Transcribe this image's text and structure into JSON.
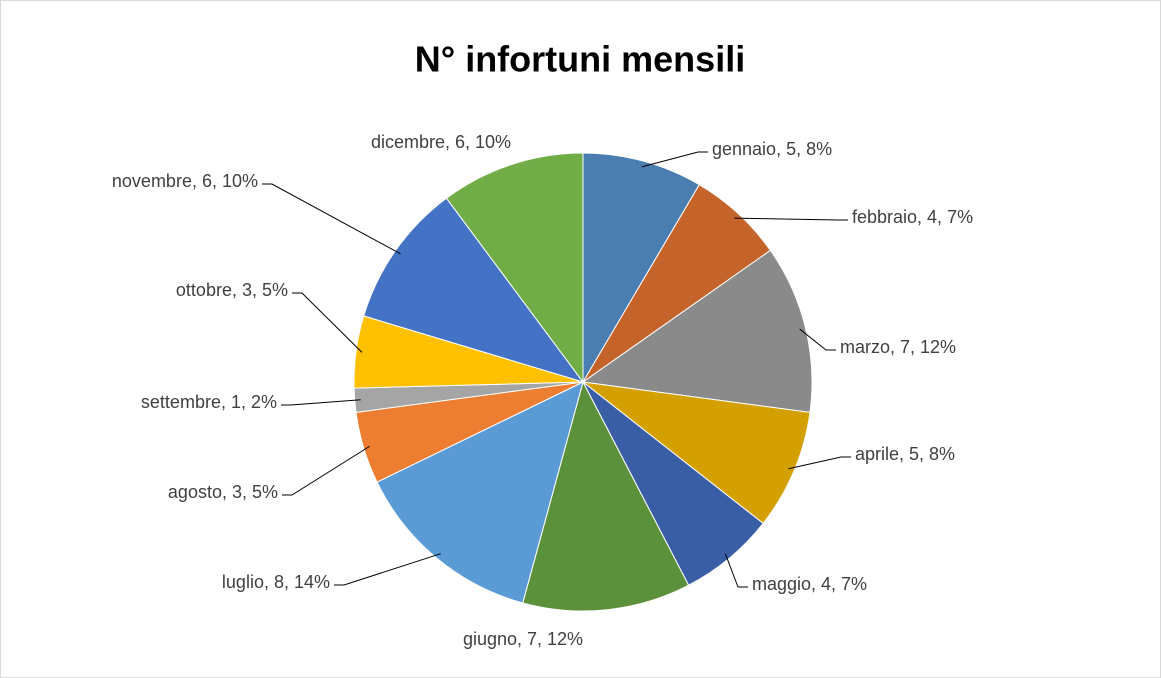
{
  "chart_data": {
    "type": "pie",
    "title": "N° infortuni mensili",
    "categories": [
      "gennaio",
      "febbraio",
      "marzo",
      "aprile",
      "maggio",
      "giugno",
      "luglio",
      "agosto",
      "settembre",
      "ottobre",
      "novembre",
      "dicembre"
    ],
    "values": [
      5,
      4,
      7,
      5,
      4,
      7,
      8,
      3,
      1,
      3,
      6,
      6
    ],
    "value_labels": [
      "gennaio, 5, 8%",
      "febbraio, 4, 7%",
      "marzo, 7, 12%",
      "aprile, 5, 8%",
      "maggio, 4, 7%",
      "giugno, 7, 12%",
      "luglio, 8, 14%",
      "agosto, 3, 5%",
      "settembre, 1, 2%",
      "ottobre, 3, 5%",
      "novembre, 6, 10%",
      "dicembre, 6, 10%"
    ],
    "colors": [
      "#4a7eb0",
      "#c5642a",
      "#8a8a8a",
      "#d4a000",
      "#3a5ea5",
      "#5c913b",
      "#5b9bd5",
      "#ed7d31",
      "#a5a5a5",
      "#ffc000",
      "#4472c4",
      "#70ad47"
    ]
  }
}
